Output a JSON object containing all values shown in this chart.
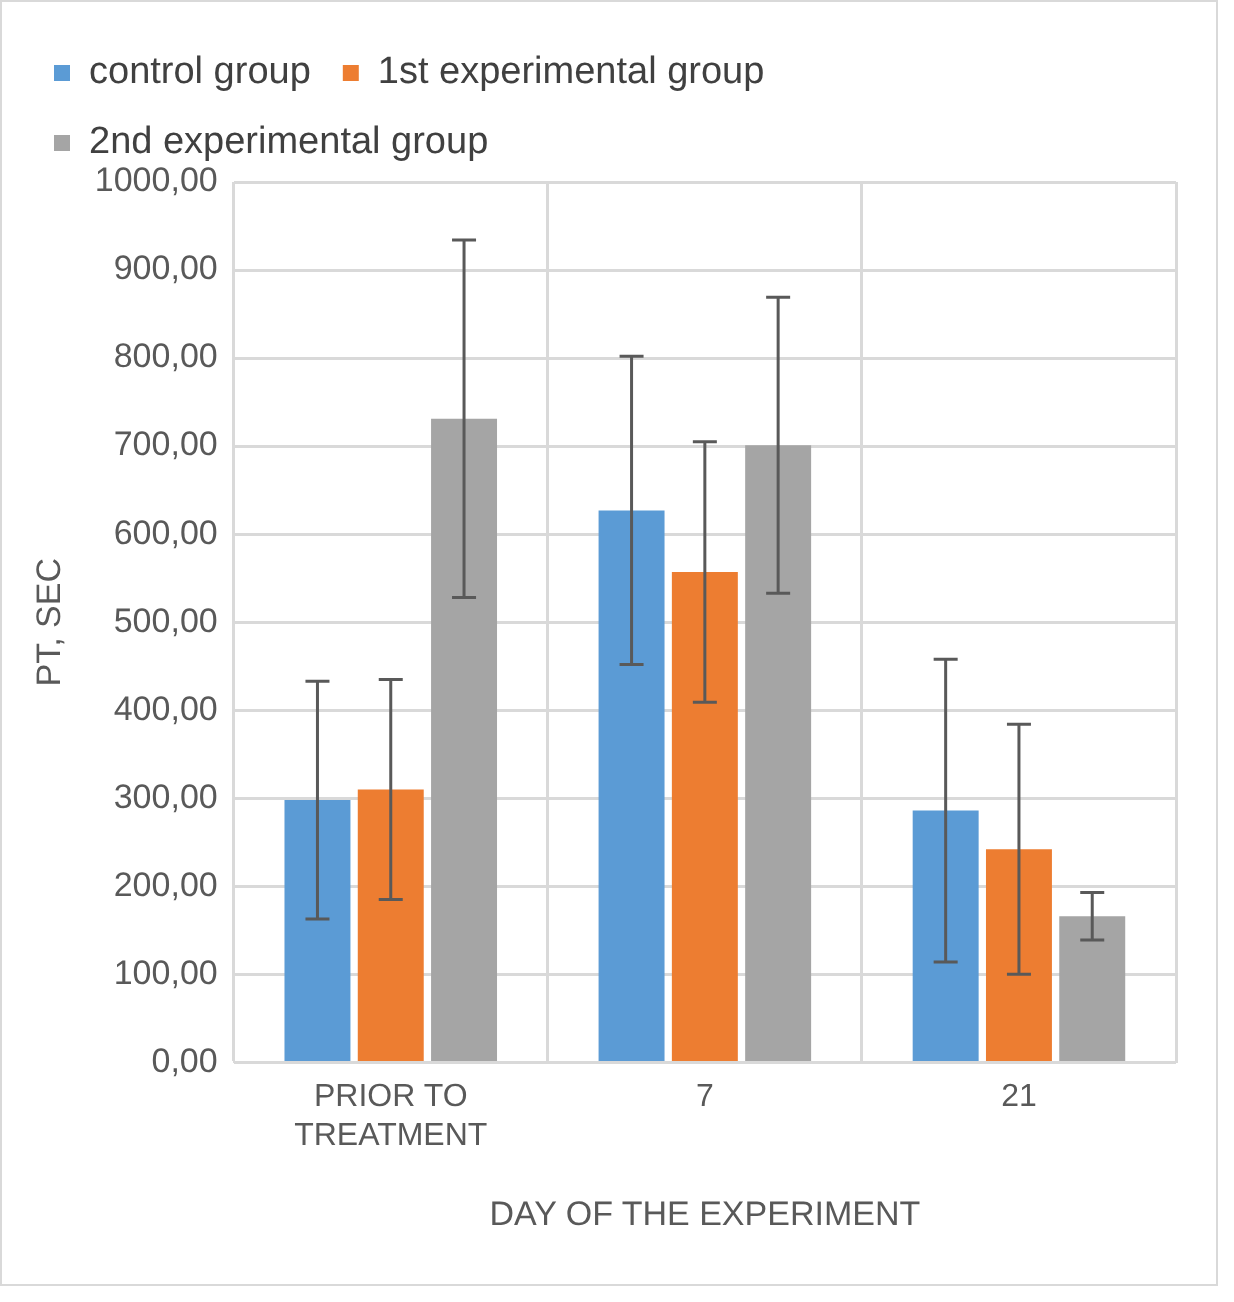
{
  "chart_data": {
    "type": "bar",
    "xlabel": "DAY OF THE EXPERIMENT",
    "ylabel": "PT, SEC",
    "categories": [
      "PRIOR TO TREATMENT",
      "7",
      "21"
    ],
    "series": [
      {
        "name": "control group",
        "color": "#5b9bd5",
        "values": [
          298,
          627,
          286
        ],
        "errors": [
          135,
          175,
          172
        ]
      },
      {
        "name": "1st experimental group",
        "color": "#ed7d31",
        "values": [
          310,
          557,
          242
        ],
        "errors": [
          125,
          148,
          142
        ]
      },
      {
        "name": "2nd experimental group",
        "color": "#a5a5a5",
        "values": [
          731,
          701,
          166
        ],
        "errors": [
          203,
          168,
          27
        ]
      }
    ],
    "ylim": [
      0,
      1000
    ],
    "yticks": [
      {
        "value": 0,
        "label": "0,00"
      },
      {
        "value": 100,
        "label": "100,00"
      },
      {
        "value": 200,
        "label": "200,00"
      },
      {
        "value": 300,
        "label": "300,00"
      },
      {
        "value": 400,
        "label": "400,00"
      },
      {
        "value": 500,
        "label": "500,00"
      },
      {
        "value": 600,
        "label": "600,00"
      },
      {
        "value": 700,
        "label": "700,00"
      },
      {
        "value": 800,
        "label": "800,00"
      },
      {
        "value": 900,
        "label": "900,00"
      },
      {
        "value": 1000,
        "label": "1000,00"
      }
    ],
    "grid": true,
    "legend": "top"
  }
}
